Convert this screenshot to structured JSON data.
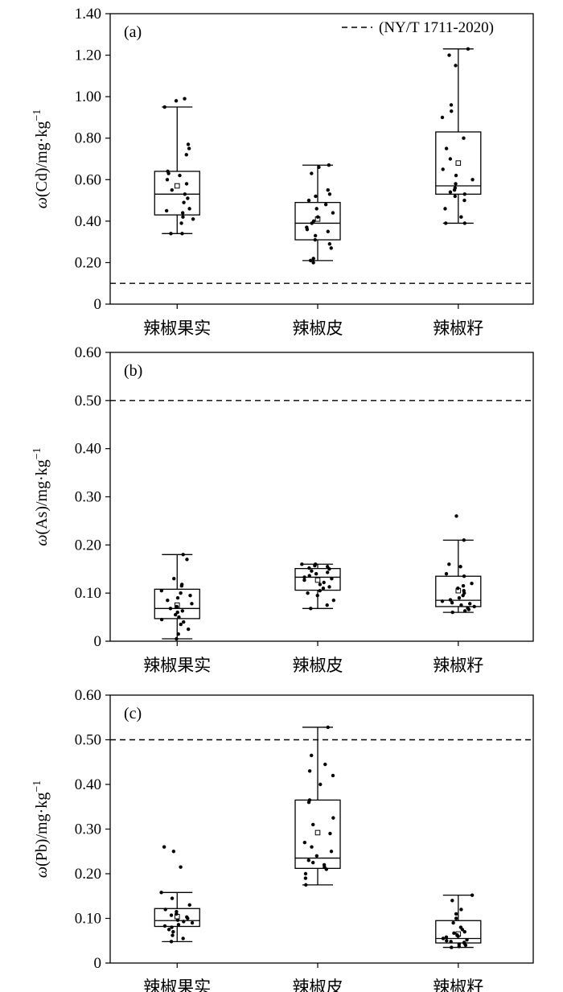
{
  "legend": {
    "label": "(NY/T 1711-2020)",
    "style": "dashed"
  },
  "colors": {
    "axis": "#000000",
    "box_fill": "#ffffff",
    "point": "#000000"
  },
  "chart_data": [
    {
      "type": "box",
      "panel_label": "(a)",
      "ylabel_prefix": "ω",
      "ylabel_body": "(Cd)/mg·kg",
      "ylabel_sup": "−1",
      "categories": [
        "辣椒果实",
        "辣椒皮",
        "辣椒籽"
      ],
      "ylim": [
        0,
        1.4
      ],
      "yticks": [
        0,
        0.2,
        0.4,
        0.6,
        0.8,
        1.0,
        1.2,
        1.4
      ],
      "ytick_labels": [
        "0",
        "0.20",
        "0.40",
        "0.60",
        "0.80",
        "1.00",
        "1.20",
        "1.40"
      ],
      "threshold": 0.1,
      "legend_position": "top-right",
      "boxes": [
        {
          "min": 0.34,
          "q1": 0.43,
          "median": 0.53,
          "q3": 0.64,
          "max": 0.95,
          "mean": 0.57,
          "points": [
            0.34,
            0.34,
            0.39,
            0.41,
            0.42,
            0.44,
            0.45,
            0.46,
            0.49,
            0.51,
            0.53,
            0.55,
            0.58,
            0.6,
            0.62,
            0.63,
            0.64,
            0.72,
            0.75,
            0.77,
            0.95,
            0.98,
            0.99
          ]
        },
        {
          "min": 0.21,
          "q1": 0.31,
          "median": 0.39,
          "q3": 0.49,
          "max": 0.67,
          "mean": 0.41,
          "points": [
            0.2,
            0.21,
            0.22,
            0.27,
            0.29,
            0.31,
            0.33,
            0.35,
            0.36,
            0.37,
            0.39,
            0.4,
            0.42,
            0.44,
            0.46,
            0.48,
            0.5,
            0.52,
            0.53,
            0.55,
            0.63,
            0.66,
            0.67
          ]
        },
        {
          "min": 0.39,
          "q1": 0.53,
          "median": 0.57,
          "q3": 0.83,
          "max": 1.23,
          "mean": 0.68,
          "points": [
            0.39,
            0.39,
            0.42,
            0.46,
            0.5,
            0.52,
            0.53,
            0.54,
            0.55,
            0.56,
            0.58,
            0.6,
            0.62,
            0.65,
            0.7,
            0.75,
            0.8,
            0.9,
            0.93,
            0.96,
            1.15,
            1.2,
            1.23
          ]
        }
      ]
    },
    {
      "type": "box",
      "panel_label": "(b)",
      "ylabel_prefix": "ω",
      "ylabel_body": "(As)/mg·kg",
      "ylabel_sup": "−1",
      "categories": [
        "辣椒果实",
        "辣椒皮",
        "辣椒籽"
      ],
      "ylim": [
        0,
        0.6
      ],
      "yticks": [
        0,
        0.1,
        0.2,
        0.3,
        0.4,
        0.5,
        0.6
      ],
      "ytick_labels": [
        "0",
        "0.10",
        "0.20",
        "0.30",
        "0.40",
        "0.50",
        "0.60"
      ],
      "threshold": 0.5,
      "boxes": [
        {
          "min": 0.005,
          "q1": 0.047,
          "median": 0.068,
          "q3": 0.108,
          "max": 0.18,
          "mean": 0.075,
          "points": [
            0.005,
            0.015,
            0.025,
            0.035,
            0.04,
            0.045,
            0.05,
            0.055,
            0.06,
            0.063,
            0.068,
            0.072,
            0.078,
            0.085,
            0.09,
            0.095,
            0.1,
            0.105,
            0.115,
            0.118,
            0.13,
            0.17,
            0.18
          ]
        },
        {
          "min": 0.068,
          "q1": 0.106,
          "median": 0.133,
          "q3": 0.151,
          "max": 0.16,
          "mean": 0.127,
          "points": [
            0.068,
            0.075,
            0.085,
            0.095,
            0.1,
            0.105,
            0.11,
            0.113,
            0.118,
            0.122,
            0.127,
            0.13,
            0.133,
            0.136,
            0.14,
            0.143,
            0.146,
            0.15,
            0.152,
            0.155,
            0.157,
            0.16,
            0.16
          ]
        },
        {
          "min": 0.06,
          "q1": 0.072,
          "median": 0.085,
          "q3": 0.135,
          "max": 0.21,
          "mean": 0.105,
          "points": [
            0.06,
            0.063,
            0.066,
            0.069,
            0.072,
            0.075,
            0.078,
            0.08,
            0.083,
            0.086,
            0.09,
            0.095,
            0.1,
            0.105,
            0.11,
            0.115,
            0.12,
            0.135,
            0.14,
            0.155,
            0.16,
            0.21,
            0.26
          ]
        }
      ]
    },
    {
      "type": "box",
      "panel_label": "(c)",
      "ylabel_prefix": "ω",
      "ylabel_body": "(Pb)/mg·kg",
      "ylabel_sup": "−1",
      "categories": [
        "辣椒果实",
        "辣椒皮",
        "辣椒籽"
      ],
      "ylim": [
        0,
        0.6
      ],
      "yticks": [
        0,
        0.1,
        0.2,
        0.3,
        0.4,
        0.5,
        0.6
      ],
      "ytick_labels": [
        "0",
        "0.10",
        "0.20",
        "0.30",
        "0.40",
        "0.50",
        "0.60"
      ],
      "threshold": 0.5,
      "boxes": [
        {
          "min": 0.048,
          "q1": 0.082,
          "median": 0.095,
          "q3": 0.122,
          "max": 0.158,
          "mean": 0.104,
          "points": [
            0.048,
            0.055,
            0.062,
            0.07,
            0.075,
            0.08,
            0.083,
            0.086,
            0.09,
            0.093,
            0.096,
            0.1,
            0.103,
            0.107,
            0.11,
            0.115,
            0.12,
            0.13,
            0.145,
            0.158,
            0.215,
            0.25,
            0.26
          ]
        },
        {
          "min": 0.175,
          "q1": 0.212,
          "median": 0.235,
          "q3": 0.365,
          "max": 0.528,
          "mean": 0.292,
          "points": [
            0.175,
            0.19,
            0.2,
            0.21,
            0.215,
            0.22,
            0.225,
            0.23,
            0.24,
            0.25,
            0.26,
            0.27,
            0.29,
            0.31,
            0.325,
            0.36,
            0.365,
            0.4,
            0.42,
            0.43,
            0.445,
            0.465,
            0.528
          ]
        },
        {
          "min": 0.035,
          "q1": 0.045,
          "median": 0.055,
          "q3": 0.095,
          "max": 0.152,
          "mean": 0.065,
          "points": [
            0.035,
            0.037,
            0.04,
            0.042,
            0.044,
            0.046,
            0.048,
            0.05,
            0.052,
            0.055,
            0.058,
            0.06,
            0.063,
            0.067,
            0.07,
            0.075,
            0.08,
            0.09,
            0.1,
            0.11,
            0.12,
            0.14,
            0.152
          ]
        }
      ]
    }
  ]
}
